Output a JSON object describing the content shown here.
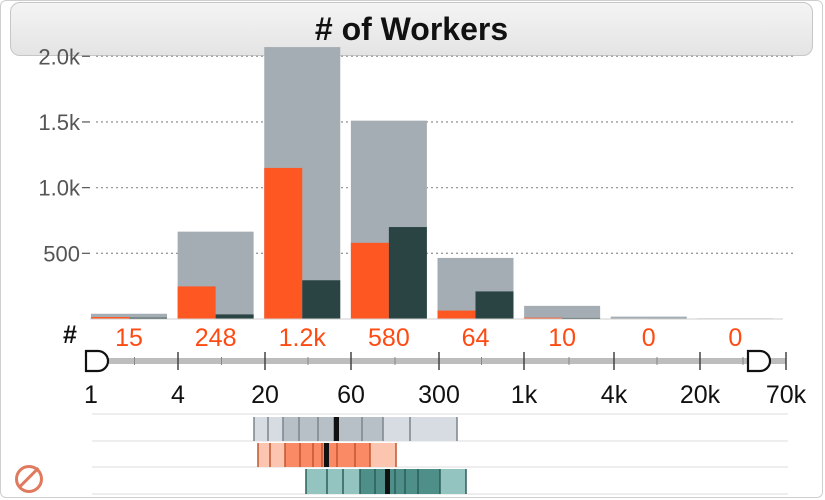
{
  "title": "# of Workers",
  "count_symbol": "#",
  "colors": {
    "total": "#a4adb3",
    "selected": "#ff5722",
    "comparison": "#2a4444",
    "count_text": "#ff4a12",
    "axis": "#bdbdbd"
  },
  "chart_data": {
    "type": "bar",
    "ylim": [
      0,
      2200
    ],
    "yticks": [
      {
        "value": 500,
        "label": "500"
      },
      {
        "value": 1000,
        "label": "1.0k"
      },
      {
        "value": 1500,
        "label": "1.5k"
      },
      {
        "value": 2000,
        "label": "2.0k"
      }
    ],
    "grid": true,
    "series": [
      {
        "values": [
          40,
          665,
          2070,
          1510,
          465,
          100,
          18,
          5
        ]
      },
      {
        "values": [
          15,
          248,
          1150,
          580,
          64,
          10,
          0,
          0
        ]
      },
      {
        "values": [
          10,
          35,
          295,
          700,
          210,
          8,
          4,
          2
        ]
      }
    ],
    "count_labels": [
      "15",
      "248",
      "1.2k",
      "580",
      "64",
      "10",
      "0",
      "0"
    ],
    "range_ticks": [
      {
        "value": 1,
        "label": "1"
      },
      {
        "value": 4,
        "label": "4"
      },
      {
        "value": 20,
        "label": "20"
      },
      {
        "value": 60,
        "label": "60"
      },
      {
        "value": 300,
        "label": "300"
      },
      {
        "value": 1000,
        "label": "1k"
      },
      {
        "value": 4000,
        "label": "4k"
      },
      {
        "value": 20000,
        "label": "20k"
      },
      {
        "value": 70000,
        "label": "70k"
      }
    ],
    "range_selection": [
      1,
      70000
    ]
  }
}
